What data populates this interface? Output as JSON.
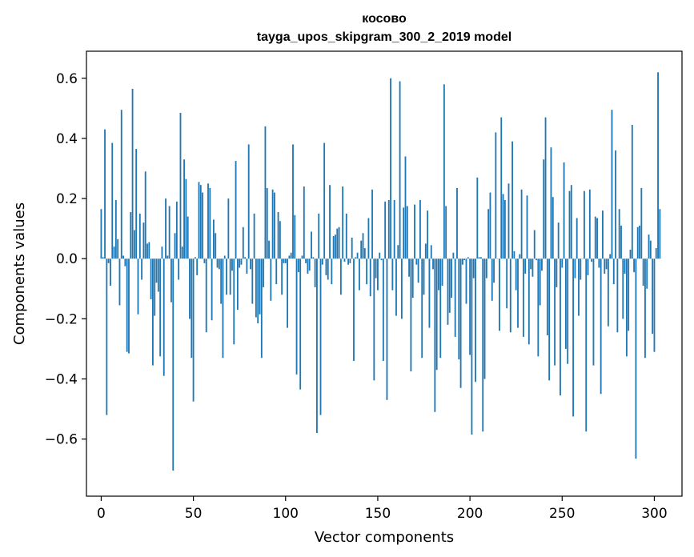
{
  "chart_data": {
    "type": "bar",
    "title": "косово",
    "subtitle": "tayga_upos_skipgram_300_2_2019 model",
    "xlabel": "Vector components",
    "ylabel": "Components values",
    "xlim": [
      -8,
      315
    ],
    "ylim": [
      -0.79,
      0.69
    ],
    "xticks": [
      0,
      50,
      100,
      150,
      200,
      250,
      300
    ],
    "yticks": [
      -0.6,
      -0.4,
      -0.2,
      0.0,
      0.2,
      0.4,
      0.6
    ],
    "xtick_labels": [
      "0",
      "50",
      "100",
      "150",
      "200",
      "250",
      "300"
    ],
    "ytick_labels": [
      "−0.6",
      "−0.4",
      "−0.2",
      "0.0",
      "0.2",
      "0.4",
      "0.6"
    ],
    "bar_color": "#1f77b4",
    "values": [
      0.165,
      0.005,
      0.43,
      -0.52,
      -0.015,
      -0.09,
      0.385,
      0.04,
      0.195,
      0.065,
      -0.155,
      0.495,
      0.01,
      -0.025,
      -0.31,
      -0.315,
      0.155,
      0.565,
      0.095,
      0.365,
      -0.185,
      0.15,
      -0.07,
      0.12,
      0.29,
      0.05,
      0.055,
      -0.135,
      -0.355,
      -0.19,
      -0.08,
      -0.11,
      -0.325,
      0.04,
      -0.39,
      0.2,
      0.01,
      0.175,
      -0.145,
      -0.705,
      0.085,
      0.19,
      -0.07,
      0.485,
      0.04,
      0.33,
      0.265,
      0.14,
      -0.2,
      -0.33,
      -0.475,
      0.005,
      -0.055,
      0.255,
      0.245,
      0.22,
      -0.015,
      -0.245,
      0.25,
      0.235,
      -0.205,
      0.13,
      0.085,
      -0.03,
      -0.035,
      -0.15,
      -0.33,
      0.01,
      -0.12,
      0.2,
      -0.12,
      -0.04,
      -0.285,
      0.325,
      -0.17,
      -0.03,
      -0.02,
      0.105,
      0.005,
      -0.05,
      0.38,
      -0.035,
      -0.15,
      0.15,
      -0.195,
      -0.215,
      -0.185,
      -0.33,
      -0.095,
      0.44,
      0.235,
      0.06,
      -0.14,
      0.23,
      0.22,
      -0.085,
      0.155,
      0.125,
      -0.12,
      -0.015,
      -0.015,
      -0.23,
      0.01,
      0.02,
      0.38,
      0.145,
      -0.385,
      -0.045,
      -0.435,
      0.01,
      0.24,
      -0.015,
      -0.05,
      -0.04,
      0.09,
      0.005,
      -0.095,
      -0.58,
      0.15,
      -0.52,
      -0.02,
      0.385,
      -0.055,
      -0.07,
      0.245,
      -0.085,
      0.075,
      0.08,
      0.1,
      0.105,
      -0.12,
      0.24,
      -0.01,
      0.15,
      -0.02,
      -0.015,
      0.07,
      -0.34,
      0.005,
      0.02,
      -0.105,
      0.06,
      0.085,
      0.035,
      -0.085,
      0.135,
      -0.125,
      0.23,
      -0.405,
      -0.065,
      -0.105,
      0.02,
      -0.005,
      -0.34,
      0.19,
      -0.47,
      0.195,
      0.6,
      -0.105,
      0.195,
      -0.19,
      0.045,
      0.59,
      -0.2,
      0.17,
      0.34,
      0.175,
      -0.06,
      -0.375,
      -0.13,
      0.18,
      -0.02,
      -0.08,
      0.195,
      -0.33,
      -0.12,
      0.05,
      0.16,
      -0.23,
      0.045,
      -0.035,
      -0.51,
      -0.37,
      -0.105,
      -0.33,
      -0.09,
      0.58,
      0.175,
      -0.22,
      -0.18,
      -0.13,
      0.02,
      -0.26,
      0.235,
      -0.335,
      -0.43,
      -0.02,
      -0.005,
      -0.15,
      0.005,
      -0.32,
      -0.585,
      -0.065,
      -0.41,
      0.27,
      0.005,
      0.005,
      -0.575,
      -0.4,
      -0.065,
      0.165,
      0.22,
      -0.14,
      -0.08,
      0.42,
      0.0,
      -0.24,
      0.47,
      0.215,
      0.195,
      -0.165,
      0.25,
      -0.245,
      0.39,
      0.025,
      -0.105,
      -0.23,
      0.015,
      0.23,
      -0.26,
      -0.05,
      0.21,
      -0.285,
      -0.035,
      -0.06,
      0.095,
      -0.005,
      -0.325,
      -0.155,
      -0.04,
      0.33,
      0.47,
      -0.255,
      -0.405,
      0.37,
      0.205,
      -0.355,
      -0.095,
      0.12,
      -0.455,
      -0.03,
      0.32,
      -0.3,
      -0.35,
      0.225,
      0.245,
      -0.525,
      -0.065,
      0.135,
      -0.19,
      -0.07,
      0.0,
      0.225,
      -0.575,
      -0.055,
      0.23,
      -0.01,
      -0.355,
      0.14,
      0.135,
      -0.03,
      -0.45,
      0.16,
      -0.05,
      -0.035,
      -0.225,
      0.015,
      0.495,
      -0.085,
      0.36,
      -0.245,
      0.165,
      0.11,
      -0.2,
      -0.05,
      -0.325,
      -0.24,
      0.03,
      0.445,
      -0.045,
      -0.665,
      0.105,
      0.11,
      0.235,
      -0.09,
      -0.33,
      -0.1,
      0.08,
      0.06,
      -0.25,
      -0.31,
      0.035,
      0.62,
      0.165
    ]
  }
}
